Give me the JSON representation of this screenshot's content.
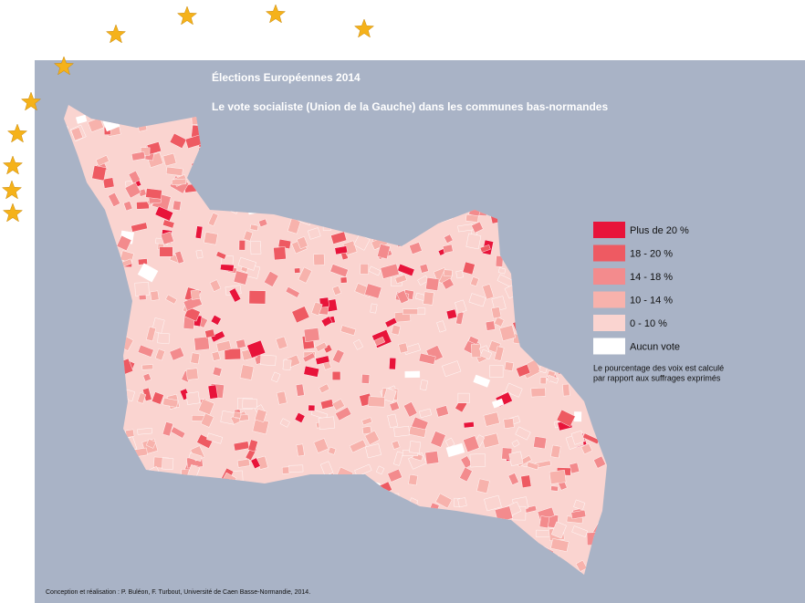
{
  "header": {
    "title": "Élections Européennes 2014",
    "subtitle": "Le vote socialiste  (Union de la Gauche) dans les communes bas-normandes"
  },
  "legend": {
    "items": [
      {
        "label": "Plus de 20 %",
        "color": "#e8143a"
      },
      {
        "label": "18 - 20 %",
        "color": "#ee5a62"
      },
      {
        "label": "14 - 18 %",
        "color": "#f38b8d"
      },
      {
        "label": "10 - 14 %",
        "color": "#f7b2ac"
      },
      {
        "label": "0 - 10 %",
        "color": "#fad4d0"
      },
      {
        "label": "Aucun vote",
        "color": "#ffffff"
      }
    ],
    "note": [
      "Le pourcentage des voix est calculé",
      "par rapport aux suffrages exprimés"
    ]
  },
  "credit": "Conception et réalisation : P. Buléon, F. Turbout, Université de Caen Basse-Normandie, 2014."
}
